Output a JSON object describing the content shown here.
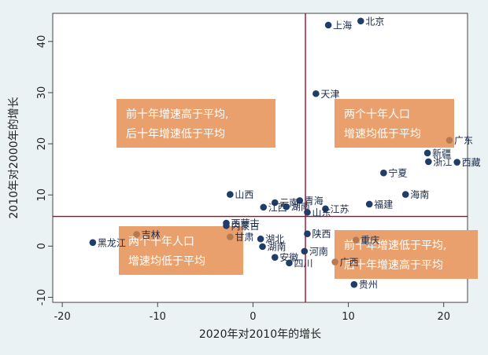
{
  "chart_data": {
    "type": "scatter",
    "xlabel": "2020年对2010年的增长",
    "ylabel": "2010年对2000年的增长",
    "xlim": [
      -21,
      22.5
    ],
    "ylim": [
      -11,
      45.5
    ],
    "xticks": [
      -20,
      -10,
      0,
      10,
      20
    ],
    "yticks": [
      -10,
      0,
      10,
      20,
      30,
      40
    ],
    "reference_lines": {
      "vertical_x": 5.5,
      "horizontal_y": 5.8
    },
    "grid": false,
    "colors": {
      "point_normal": "#1f3d68",
      "point_highlight": "#b47a52",
      "ref_line": "#9b0e27",
      "annotation_box": "#e9a06d",
      "background": "#eaf2f3",
      "plot_bg": "#ffffff"
    },
    "points": [
      {
        "label": "北京",
        "x": 11.3,
        "y": 44.0,
        "highlight": false
      },
      {
        "label": "上海",
        "x": 7.9,
        "y": 43.2,
        "highlight": false
      },
      {
        "label": "天津",
        "x": 6.6,
        "y": 29.8,
        "highlight": false
      },
      {
        "label": "广东",
        "x": 20.6,
        "y": 20.7,
        "highlight": true
      },
      {
        "label": "新疆",
        "x": 18.3,
        "y": 18.2,
        "highlight": false
      },
      {
        "label": "浙江",
        "x": 18.4,
        "y": 16.5,
        "highlight": false
      },
      {
        "label": "西藏",
        "x": 21.4,
        "y": 16.4,
        "highlight": false
      },
      {
        "label": "宁夏",
        "x": 13.7,
        "y": 14.3,
        "highlight": false
      },
      {
        "label": "海南",
        "x": 16.0,
        "y": 10.1,
        "highlight": false
      },
      {
        "label": "山西",
        "x": -2.4,
        "y": 10.1,
        "highlight": false
      },
      {
        "label": "青海",
        "x": 4.9,
        "y": 8.9,
        "highlight": false
      },
      {
        "label": "云南",
        "x": 2.3,
        "y": 8.5,
        "highlight": false
      },
      {
        "label": "福建",
        "x": 12.2,
        "y": 8.2,
        "highlight": false
      },
      {
        "label": "江西",
        "x": 1.1,
        "y": 7.6,
        "highlight": false
      },
      {
        "label": "湖南",
        "x": 3.5,
        "y": 7.7,
        "highlight": false
      },
      {
        "label": "江苏",
        "x": 7.6,
        "y": 7.3,
        "highlight": false
      },
      {
        "label": "山东",
        "x": 5.7,
        "y": 6.6,
        "highlight": false
      },
      {
        "label": "西蒙古",
        "x": -2.8,
        "y": 4.5,
        "highlight": false
      },
      {
        "label": "内蒙古",
        "x": -2.8,
        "y": 4.0,
        "highlight": false
      },
      {
        "label": "吉林",
        "x": -12.2,
        "y": 2.3,
        "highlight": true
      },
      {
        "label": "甘肃",
        "x": -2.4,
        "y": 1.8,
        "highlight": true
      },
      {
        "label": "陕西",
        "x": 5.7,
        "y": 2.4,
        "highlight": false
      },
      {
        "label": "湖北",
        "x": 0.8,
        "y": 1.4,
        "highlight": false
      },
      {
        "label": "重庆",
        "x": 10.8,
        "y": 1.2,
        "highlight": true
      },
      {
        "label": "黑龙江",
        "x": -16.8,
        "y": 0.7,
        "highlight": false
      },
      {
        "label": "湖南",
        "x": 1.0,
        "y": -0.1,
        "highlight": false
      },
      {
        "label": "河南",
        "x": 5.4,
        "y": -1.0,
        "highlight": false
      },
      {
        "label": "安徽",
        "x": 2.3,
        "y": -2.2,
        "highlight": false
      },
      {
        "label": "四川",
        "x": 3.8,
        "y": -3.3,
        "highlight": false
      },
      {
        "label": "广西",
        "x": 8.6,
        "y": -3.1,
        "highlight": true
      },
      {
        "label": "贵州",
        "x": 10.6,
        "y": -7.5,
        "highlight": false
      }
    ],
    "annotations": [
      {
        "lines": [
          "前十年增速高于平均,",
          "后十年增速低于平均"
        ],
        "quadrant": "upper-left"
      },
      {
        "lines": [
          "两个十年人口",
          "增速均低于平均"
        ],
        "quadrant": "upper-right"
      },
      {
        "lines": [
          "两个十年人口",
          "增速均低于平均"
        ],
        "quadrant": "lower-left"
      },
      {
        "lines": [
          "前十年增速低于平均,",
          "后十年增速高于平均"
        ],
        "quadrant": "lower-right"
      }
    ]
  }
}
